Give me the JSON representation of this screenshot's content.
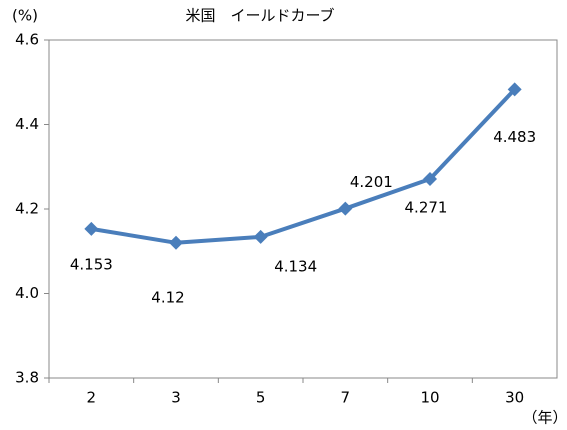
{
  "chart_data": {
    "type": "line",
    "title": "米国　イールドカーブ",
    "y_unit": "(%)",
    "x_unit": "（年）",
    "categories": [
      "2",
      "3",
      "5",
      "7",
      "10",
      "30"
    ],
    "series": [
      {
        "name": "米国",
        "color": "#4a7ebb",
        "values": [
          4.153,
          4.12,
          4.134,
          4.201,
          4.271,
          4.483
        ]
      }
    ],
    "ylim": [
      3.8,
      4.6
    ],
    "yticks": [
      3.8,
      {
        "value": 4,
        "label": "4.0"
      },
      4.2,
      4.4,
      4.6
    ],
    "grid": false
  }
}
